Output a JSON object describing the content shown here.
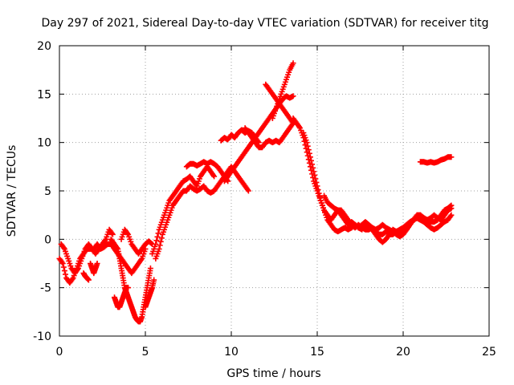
{
  "chart_data": {
    "type": "scatter",
    "title": "Day 297 of 2021, Sidereal Day-to-day VTEC variation (SDTVAR) for receiver titg",
    "xlabel": "GPS time / hours",
    "ylabel": "SDTVAR / TECUs",
    "xlim": [
      0,
      25
    ],
    "ylim": [
      -10,
      20
    ],
    "xticks": [
      "0",
      "5",
      "10",
      "15",
      "20",
      "25"
    ],
    "yticks": [
      "-10",
      "-5",
      "0",
      "5",
      "10",
      "15",
      "20"
    ],
    "grid": true,
    "marker": "plus",
    "color": "#ff0000",
    "series": [
      {
        "x": [
          0.0,
          0.2,
          0.4,
          0.6,
          0.8,
          1.0,
          1.2,
          1.4,
          1.6,
          1.8,
          2.0,
          2.2,
          2.4,
          2.6,
          2.8,
          3.0,
          3.2,
          3.4,
          3.6,
          3.8,
          4.0,
          4.2,
          4.4,
          4.6,
          4.8,
          5.0
        ],
        "y": [
          -2.0,
          -2.5,
          -4.0,
          -4.5,
          -4.0,
          -3.0,
          -2.0,
          -1.5,
          -1.0,
          -1.0,
          -1.0,
          -0.5,
          -1.0,
          -0.8,
          -0.5,
          -0.5,
          -1.0,
          -1.5,
          -2.0,
          -2.5,
          -3.0,
          -3.5,
          -3.0,
          -2.5,
          -2.0,
          -1.0
        ]
      },
      {
        "x": [
          0.1,
          0.3,
          0.5,
          0.7,
          0.9,
          1.1,
          1.3,
          1.5,
          1.7,
          1.9,
          2.1,
          2.3,
          2.5,
          2.7,
          2.9,
          3.1
        ],
        "y": [
          -0.5,
          -1.0,
          -2.0,
          -3.0,
          -3.5,
          -3.0,
          -2.0,
          -1.0,
          -0.5,
          -1.0,
          -1.5,
          -1.0,
          -0.5,
          0.0,
          1.0,
          0.5
        ]
      },
      {
        "x": [
          1.4,
          1.5,
          1.6,
          1.7
        ],
        "y": [
          -3.5,
          -3.8,
          -4.0,
          -4.2
        ]
      },
      {
        "x": [
          1.8,
          1.9,
          2.0,
          2.1,
          2.2
        ],
        "y": [
          -2.5,
          -3.0,
          -3.5,
          -3.0,
          -2.5
        ]
      },
      {
        "x": [
          3.0,
          3.2,
          3.4,
          3.5,
          3.6,
          3.7,
          3.8,
          3.9,
          4.0,
          4.1,
          4.2,
          4.3,
          4.4,
          4.5,
          4.6,
          4.7,
          4.8,
          4.9,
          5.0,
          5.1,
          5.2,
          5.3
        ],
        "y": [
          0.0,
          -0.5,
          -1.0,
          -2.0,
          -3.0,
          -4.0,
          -5.0,
          -5.5,
          -6.0,
          -6.5,
          -7.0,
          -7.5,
          -8.0,
          -8.3,
          -8.5,
          -8.5,
          -8.0,
          -7.0,
          -6.0,
          -5.0,
          -4.0,
          -3.0
        ]
      },
      {
        "x": [
          3.2,
          3.3,
          3.4,
          3.5,
          3.6,
          3.7,
          3.8,
          3.9,
          4.0
        ],
        "y": [
          -6.0,
          -6.5,
          -7.0,
          -7.0,
          -6.5,
          -6.0,
          -5.5,
          -5.0,
          -5.0
        ]
      },
      {
        "x": [
          3.6,
          3.8,
          4.0,
          4.2,
          4.4,
          4.6,
          4.8,
          5.0,
          5.2,
          5.4
        ],
        "y": [
          0.0,
          1.0,
          0.5,
          -0.5,
          -1.0,
          -1.5,
          -1.0,
          -0.5,
          -0.2,
          -0.5
        ]
      },
      {
        "x": [
          5.0,
          5.1,
          5.2,
          5.3,
          5.4,
          5.5
        ],
        "y": [
          -7.0,
          -6.5,
          -6.0,
          -5.5,
          -5.0,
          -4.2
        ]
      },
      {
        "x": [
          5.4,
          5.6,
          5.8,
          6.0,
          6.2,
          6.4,
          6.6,
          6.8,
          7.0,
          7.2,
          7.4,
          7.6,
          7.8,
          8.0,
          8.2,
          8.4,
          8.6,
          8.8,
          9.0
        ],
        "y": [
          -1.5,
          -0.5,
          1.0,
          2.0,
          3.0,
          4.0,
          4.5,
          5.0,
          5.5,
          6.0,
          6.2,
          6.5,
          6.0,
          5.5,
          6.5,
          7.0,
          7.5,
          7.0,
          6.5
        ]
      },
      {
        "x": [
          5.6,
          5.8,
          6.0,
          6.2,
          6.4,
          6.6,
          6.8,
          7.0,
          7.2,
          7.4,
          7.6,
          7.8,
          8.0,
          8.2,
          8.4,
          8.6,
          8.8,
          9.0,
          9.2,
          9.4,
          9.6,
          9.8,
          10.0,
          10.2,
          10.4,
          10.6,
          10.8,
          11.0
        ],
        "y": [
          -2.0,
          -1.0,
          0.5,
          1.5,
          2.5,
          3.5,
          4.0,
          4.5,
          5.0,
          5.0,
          5.5,
          5.2,
          5.0,
          5.2,
          5.5,
          5.0,
          4.8,
          5.0,
          5.5,
          6.0,
          6.5,
          7.0,
          7.5,
          7.0,
          6.5,
          6.0,
          5.5,
          5.0
        ]
      },
      {
        "x": [
          7.4,
          7.6,
          7.8,
          8.0,
          8.2,
          8.4,
          8.6,
          8.8,
          9.0,
          9.2,
          9.4,
          9.6,
          9.8
        ],
        "y": [
          7.5,
          7.8,
          7.8,
          7.6,
          7.8,
          8.0,
          7.8,
          8.0,
          7.8,
          7.5,
          7.0,
          6.5,
          6.0
        ]
      },
      {
        "x": [
          9.4,
          9.6,
          9.8,
          10.0,
          10.2,
          10.4,
          10.6,
          10.8,
          11.0,
          11.2,
          11.4,
          11.6
        ],
        "y": [
          10.2,
          10.5,
          10.3,
          10.8,
          10.5,
          11.0,
          11.3,
          11.0,
          11.2,
          11.0,
          10.5,
          10.0
        ]
      },
      {
        "x": [
          9.6,
          9.8,
          10.0,
          10.2,
          10.4,
          10.6,
          10.8,
          11.0,
          11.2,
          11.4,
          11.6,
          11.8,
          12.0,
          12.2,
          12.4,
          12.6,
          12.8,
          13.0,
          13.2,
          13.4,
          13.6
        ],
        "y": [
          6.0,
          6.5,
          7.0,
          7.5,
          8.0,
          8.5,
          9.0,
          9.5,
          10.0,
          10.5,
          11.0,
          11.5,
          12.0,
          12.5,
          13.0,
          13.5,
          14.0,
          14.5,
          14.8,
          14.6,
          14.8
        ]
      },
      {
        "x": [
          10.8,
          11.0,
          11.2,
          11.4,
          11.6,
          11.8,
          12.0,
          12.2,
          12.4,
          12.6,
          12.8,
          13.0,
          13.2,
          13.4,
          13.6
        ],
        "y": [
          11.5,
          11.0,
          10.5,
          10.0,
          9.5,
          9.5,
          10.0,
          10.2,
          10.0,
          10.2,
          10.0,
          10.5,
          11.0,
          11.5,
          12.0
        ]
      },
      {
        "x": [
          12.0,
          12.2,
          12.4,
          12.6,
          12.8,
          13.0,
          13.2,
          13.4,
          13.6
        ],
        "y": [
          16.0,
          15.5,
          15.0,
          14.5,
          14.0,
          13.5,
          13.0,
          12.5,
          12.0
        ]
      },
      {
        "x": [
          12.4,
          12.6,
          12.8,
          13.0,
          13.2,
          13.4,
          13.6
        ],
        "y": [
          12.5,
          13.5,
          14.5,
          15.5,
          16.5,
          17.5,
          18.2
        ]
      },
      {
        "x": [
          13.6,
          13.8,
          14.0,
          14.2,
          14.4,
          14.6,
          14.8,
          15.0,
          15.2,
          15.4,
          15.6,
          15.8,
          16.0,
          16.2,
          16.4,
          16.6,
          16.8,
          17.0,
          17.2,
          17.4,
          17.6,
          17.8,
          18.0,
          18.2,
          18.4,
          18.6,
          18.8,
          19.0,
          19.2,
          19.4,
          19.6,
          19.8,
          20.0,
          20.2,
          20.4,
          20.6,
          20.8,
          21.0,
          21.2,
          21.4,
          21.6,
          21.8,
          22.0,
          22.2,
          22.4,
          22.6,
          22.8
        ],
        "y": [
          12.5,
          12.0,
          11.5,
          10.5,
          9.0,
          7.5,
          6.0,
          5.0,
          4.0,
          3.0,
          2.5,
          2.0,
          2.5,
          3.0,
          3.0,
          2.5,
          2.0,
          1.5,
          1.2,
          1.5,
          1.2,
          1.0,
          1.0,
          1.2,
          0.8,
          0.5,
          0.5,
          0.8,
          0.5,
          0.5,
          0.8,
          1.0,
          1.2,
          1.5,
          1.8,
          2.0,
          2.2,
          2.5,
          2.2,
          2.0,
          1.8,
          1.8,
          2.0,
          2.5,
          3.0,
          3.2,
          3.5
        ]
      },
      {
        "x": [
          14.2,
          14.4,
          14.6,
          14.8,
          15.0,
          15.2,
          15.4,
          15.6,
          15.8,
          16.0,
          16.2,
          16.4,
          16.6,
          16.8,
          17.0,
          17.2,
          17.4,
          17.6,
          17.8,
          18.0,
          18.2,
          18.4,
          18.6,
          18.8,
          19.0,
          19.2,
          19.4,
          19.6,
          19.8,
          20.0,
          20.2,
          20.4,
          20.6,
          20.8,
          21.0,
          21.2,
          21.4,
          21.6,
          21.8,
          22.0,
          22.2,
          22.4,
          22.6,
          22.8
        ],
        "y": [
          11.0,
          10.0,
          8.5,
          7.0,
          5.5,
          4.0,
          3.0,
          2.0,
          1.5,
          1.0,
          0.8,
          1.0,
          1.2,
          1.0,
          1.2,
          1.5,
          1.2,
          1.0,
          1.5,
          1.2,
          1.0,
          0.5,
          0.0,
          -0.3,
          0.0,
          0.5,
          1.0,
          0.8,
          0.5,
          0.8,
          1.0,
          1.5,
          2.0,
          2.2,
          2.0,
          1.8,
          1.5,
          1.2,
          1.0,
          1.2,
          1.5,
          1.8,
          2.0,
          2.5
        ]
      },
      {
        "x": [
          15.4,
          15.6,
          15.8,
          16.0,
          16.2,
          16.4,
          16.6,
          16.8,
          17.0,
          17.2,
          17.4,
          17.6,
          17.8,
          18.0,
          18.2,
          18.4,
          18.6,
          18.8,
          19.0,
          19.2,
          19.4,
          19.6,
          19.8,
          20.0,
          20.2,
          20.4,
          20.6,
          20.8,
          21.0,
          21.2,
          21.4,
          21.6,
          21.8,
          22.0,
          22.2,
          22.4,
          22.6,
          22.8
        ],
        "y": [
          4.5,
          3.8,
          3.5,
          3.2,
          3.0,
          2.5,
          2.0,
          1.5,
          1.8,
          1.5,
          1.2,
          1.5,
          1.8,
          1.5,
          1.2,
          1.0,
          1.2,
          1.5,
          1.2,
          1.0,
          0.8,
          0.5,
          0.3,
          0.5,
          1.0,
          1.5,
          2.0,
          2.5,
          2.5,
          2.2,
          2.0,
          2.2,
          2.5,
          2.2,
          2.0,
          2.5,
          3.0,
          3.2
        ]
      },
      {
        "x": [
          21.0,
          21.2,
          21.4,
          21.6,
          21.8,
          22.0,
          22.2,
          22.4,
          22.6,
          22.8
        ],
        "y": [
          8.0,
          8.0,
          7.9,
          8.0,
          7.9,
          8.0,
          8.2,
          8.3,
          8.5,
          8.5
        ]
      }
    ]
  }
}
